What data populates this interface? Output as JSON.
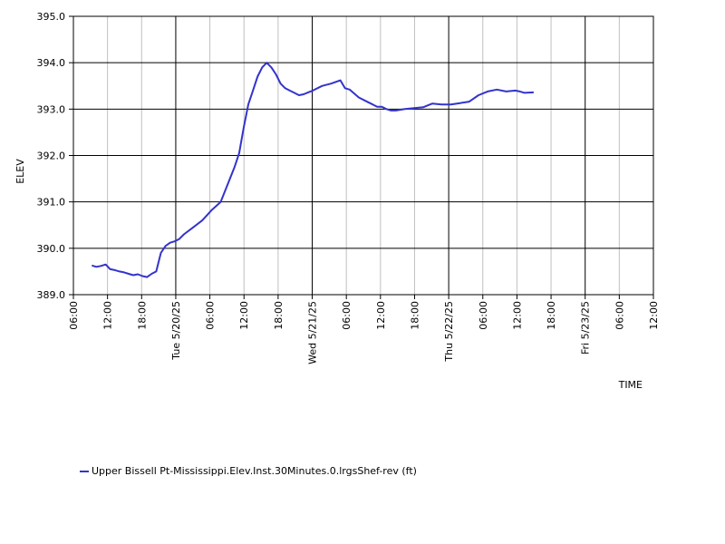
{
  "chart_data": {
    "type": "line",
    "title": "",
    "xlabel": "TIME",
    "ylabel": "ELEV",
    "ylim": [
      389.0,
      395.0
    ],
    "y_ticks": [
      "389.0",
      "390.0",
      "391.0",
      "392.0",
      "393.0",
      "394.0",
      "395.0"
    ],
    "xlim": [
      "2025-05-19T06:00",
      "2025-05-24T12:00"
    ],
    "x_ticks": [
      "06:00",
      "12:00",
      "18:00",
      "Tue 5/20/25",
      "06:00",
      "12:00",
      "18:00",
      "Wed 5/21/25",
      "06:00",
      "12:00",
      "18:00",
      "Thu 5/22/25",
      "06:00",
      "12:00",
      "18:00",
      "Fri 5/23/25",
      "06:00",
      "12:00"
    ],
    "major_ticks": [
      "Tue 5/20/25",
      "Wed 5/21/25",
      "Thu 5/22/25",
      "Fri 5/23/25"
    ],
    "grid": true,
    "legend_position": "bottom-left",
    "series": [
      {
        "name": "Upper Bissell Pt-Mississippi.Elev.Inst.30Minutes.0.lrgsShef-rev (ft)",
        "color": "#3333cc",
        "x": [
          "2025-05-19T10:00",
          "2025-05-19T11:00",
          "2025-05-19T12:00",
          "2025-05-19T13:00",
          "2025-05-19T14:00",
          "2025-05-19T15:00",
          "2025-05-19T16:00",
          "2025-05-19T17:00",
          "2025-05-19T18:00",
          "2025-05-19T19:00",
          "2025-05-19T20:00",
          "2025-05-19T21:00",
          "2025-05-19T22:00",
          "2025-05-19T23:00",
          "2025-05-20T00:00",
          "2025-05-20T01:00",
          "2025-05-20T02:00",
          "2025-05-20T03:00",
          "2025-05-20T04:00",
          "2025-05-20T05:00",
          "2025-05-20T06:00",
          "2025-05-20T08:00",
          "2025-05-20T10:00",
          "2025-05-20T12:00",
          "2025-05-20T14:00",
          "2025-05-20T16:00",
          "2025-05-20T17:00",
          "2025-05-20T18:00",
          "2025-05-20T19:00",
          "2025-05-20T20:00",
          "2025-05-20T21:00",
          "2025-05-20T22:00",
          "2025-05-20T23:00",
          "2025-05-21T00:00",
          "2025-05-21T01:00",
          "2025-05-21T02:00",
          "2025-05-21T03:00",
          "2025-05-21T04:00",
          "2025-05-21T05:00",
          "2025-05-21T06:00",
          "2025-05-21T07:00",
          "2025-05-21T08:00",
          "2025-05-21T09:00",
          "2025-05-21T10:00",
          "2025-05-21T12:00",
          "2025-05-21T14:00",
          "2025-05-21T16:00",
          "2025-05-21T17:00",
          "2025-05-21T18:00",
          "2025-05-21T20:00",
          "2025-05-21T22:00",
          "2025-05-21T23:00",
          "2025-05-22T00:00",
          "2025-05-22T01:00",
          "2025-05-22T02:00",
          "2025-05-22T03:00",
          "2025-05-22T04:00",
          "2025-05-22T06:00",
          "2025-05-22T08:00",
          "2025-05-22T10:00",
          "2025-05-22T11:00",
          "2025-05-22T12:00",
          "2025-05-22T14:00",
          "2025-05-22T16:00",
          "2025-05-22T18:00",
          "2025-05-22T20:00",
          "2025-05-22T22:00",
          "2025-05-23T00:00",
          "2025-05-23T02:00",
          "2025-05-23T04:00",
          "2025-05-23T06:00",
          "2025-05-23T07:00",
          "2025-05-23T08:00",
          "2025-05-23T10:00"
        ],
        "values": [
          389.63,
          389.6,
          389.62,
          389.65,
          389.55,
          389.53,
          389.5,
          389.48,
          389.45,
          389.42,
          389.44,
          389.4,
          389.38,
          389.45,
          389.5,
          389.9,
          390.05,
          390.12,
          390.15,
          390.2,
          390.3,
          390.45,
          390.6,
          390.82,
          391.0,
          391.5,
          391.75,
          392.05,
          392.6,
          393.1,
          393.4,
          393.7,
          393.9,
          394.0,
          393.9,
          393.75,
          393.55,
          393.45,
          393.4,
          393.35,
          393.3,
          393.32,
          393.36,
          393.4,
          393.5,
          393.55,
          393.62,
          393.45,
          393.42,
          393.25,
          393.15,
          393.1,
          393.05,
          393.05,
          393.0,
          392.97,
          392.97,
          393.0,
          393.02,
          393.04,
          393.08,
          393.12,
          393.1,
          393.1,
          393.13,
          393.16,
          393.3,
          393.38,
          393.42,
          393.38,
          393.4,
          393.38,
          393.35,
          393.36
        ]
      }
    ]
  }
}
